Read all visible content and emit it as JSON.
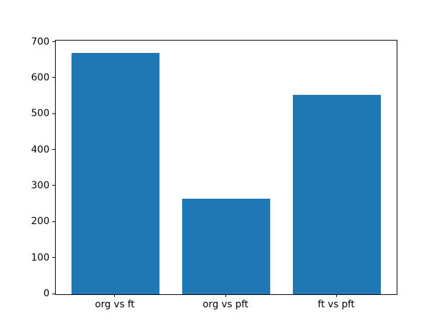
{
  "chart_data": {
    "type": "bar",
    "title": "",
    "xlabel": "",
    "ylabel": "",
    "categories": [
      "org vs ft",
      "org vs pft",
      "ft vs pft"
    ],
    "values": [
      670,
      265,
      555
    ],
    "yticks": [
      0,
      100,
      200,
      300,
      400,
      500,
      600,
      700
    ],
    "ylim": [
      0,
      705
    ],
    "xlim": [
      -0.54,
      2.54
    ],
    "bar_width": 0.8,
    "grid": false,
    "legend": null,
    "bar_color": "#1f77b4",
    "spine_color": "#000000",
    "text_color": "#000000",
    "background_color": "#ffffff"
  }
}
